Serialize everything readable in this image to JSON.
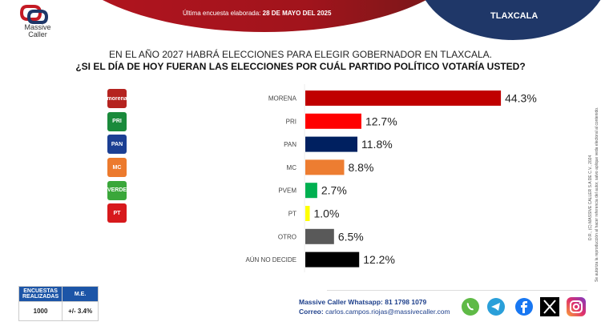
{
  "header": {
    "date_label": "Última encuesta elaborada:",
    "date_value": "28 DE MAYO DEL 2025",
    "state": "TLAXCALA",
    "brand_line1": "Massive",
    "brand_line2": "Caller"
  },
  "question": {
    "line1": "EN EL AÑO 2027 HABRÁ ELECCIONES PARA ELEGIR GOBERNADOR EN TLAXCALA.",
    "line2": "¿SI EL DÍA DE HOY FUERAN LAS ELECCIONES POR CUÁL PARTIDO POLÍTICO VOTARÍA USTED?"
  },
  "party_logos": [
    {
      "name": "morena",
      "text": "morena",
      "color": "#b5231f"
    },
    {
      "name": "pri",
      "text": "PRI",
      "color": "#1a8a3b"
    },
    {
      "name": "pan",
      "text": "PAN",
      "color": "#1b3f93"
    },
    {
      "name": "mc",
      "text": "MC",
      "color": "#ec7a2d"
    },
    {
      "name": "verde",
      "text": "VERDE",
      "color": "#3aa73a"
    },
    {
      "name": "pt",
      "text": "PT",
      "color": "#d7191c"
    }
  ],
  "chart_data": {
    "type": "bar",
    "orientation": "horizontal",
    "title": "¿SI EL DÍA DE HOY FUERAN LAS ELECCIONES POR CUÁL PARTIDO POLÍTICO VOTARÍA USTED?",
    "categories": [
      "MORENA",
      "PRI",
      "PAN",
      "MC",
      "PVEM",
      "PT",
      "OTRO",
      "AÚN NO DECIDE"
    ],
    "values": [
      44.3,
      12.7,
      11.8,
      8.8,
      2.7,
      1.0,
      6.5,
      12.2
    ],
    "labels": [
      "44.3%",
      "12.7%",
      "11.8%",
      "8.8%",
      "2.7%",
      "1.0%",
      "6.5%",
      "12.2%"
    ],
    "colors": [
      "#c00000",
      "#ff0000",
      "#002060",
      "#ed7d31",
      "#00b050",
      "#ffff00",
      "#595959",
      "#000000"
    ],
    "unit": "%",
    "xlim": [
      0,
      50
    ],
    "grid": false,
    "legend": "none"
  },
  "stats": {
    "col1_header": "ENCUESTAS REALIZADAS",
    "col2_header": "M.E.",
    "col1_value": "1000",
    "col2_value": "+/- 3.4%"
  },
  "footer": {
    "whatsapp_label": "Massive Caller Whatsapp:",
    "whatsapp_value": "81 1798 1079",
    "email_label": "Correo:",
    "email_value": "carlos.campos.riojas@massivecaller.com",
    "social": [
      "whatsapp",
      "telegram",
      "facebook",
      "x",
      "instagram"
    ]
  },
  "legal": {
    "line1": "D.R., (C) MASSIVE CALLER S.A DE C.V., 2024",
    "line2": "Se autoriza la reproducción al hacer referencia del autor, salvo aplique veda electoral al contenido."
  }
}
